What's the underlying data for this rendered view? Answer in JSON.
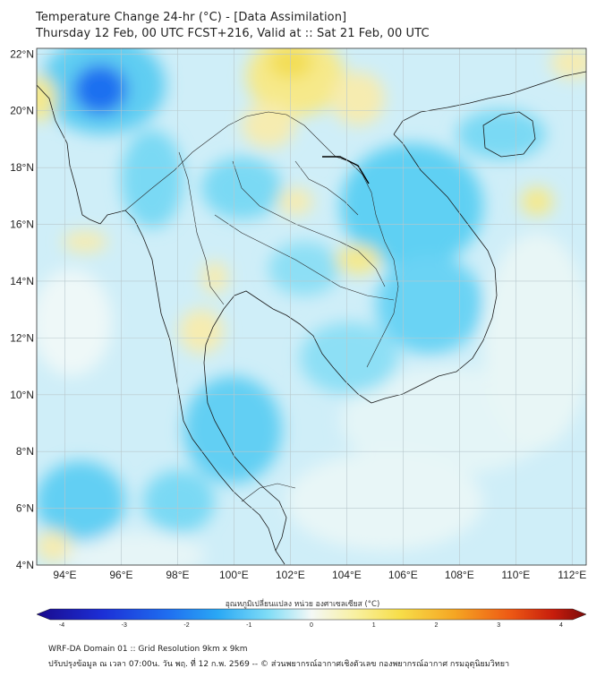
{
  "header": {
    "title_line1": "Temperature Change 24-hr (°C) - [Data Assimilation]",
    "title_line2": "Thursday 12 Feb, 00 UTC FCST+216, Valid at :: Sat 21 Feb, 00 UTC"
  },
  "map": {
    "lat_labels": [
      "22°N",
      "20°N",
      "18°N",
      "16°N",
      "14°N",
      "12°N",
      "10°N",
      "8°N",
      "6°N",
      "4°N"
    ],
    "lon_labels": [
      "94°E",
      "96°E",
      "98°E",
      "100°E",
      "102°E",
      "104°E",
      "106°E",
      "108°E",
      "110°E",
      "112°E"
    ],
    "lat_range": [
      4,
      22.2
    ],
    "lon_range": [
      93,
      112.5
    ],
    "ocean_color": "#cfeef8",
    "gridline_color": "#b8c8cc"
  },
  "colorbar": {
    "label": "อุณหภูมิเปลี่ยนแปลง หน่วย องศาเซลเซียส (°C)",
    "ticks": [
      "-4",
      "-3",
      "-2",
      "-1",
      "0",
      "1",
      "2",
      "3",
      "4"
    ],
    "range": [
      -4,
      4
    ],
    "colors": [
      "#1a0a8c",
      "#1c2fd6",
      "#1f6ff0",
      "#2aa8f5",
      "#46d0f7",
      "#9fe6f6",
      "#f4f8f6",
      "#f8f3b0",
      "#f7de4a",
      "#f5a623",
      "#ee5a14",
      "#c71d0c",
      "#7a0a0a"
    ]
  },
  "footer": {
    "line1": "WRF-DA Domain 01 :: Grid Resolution 9km x 9km",
    "line2": "ปรับปรุงข้อมูล ณ เวลา 07:00น. วัน พฤ. ที่ 12 ก.พ. 2569 -- © ส่วนพยากรณ์อากาศเชิงตัวเลข กองพยากรณ์อากาศ กรมอุตุนิยมวิทยา"
  }
}
